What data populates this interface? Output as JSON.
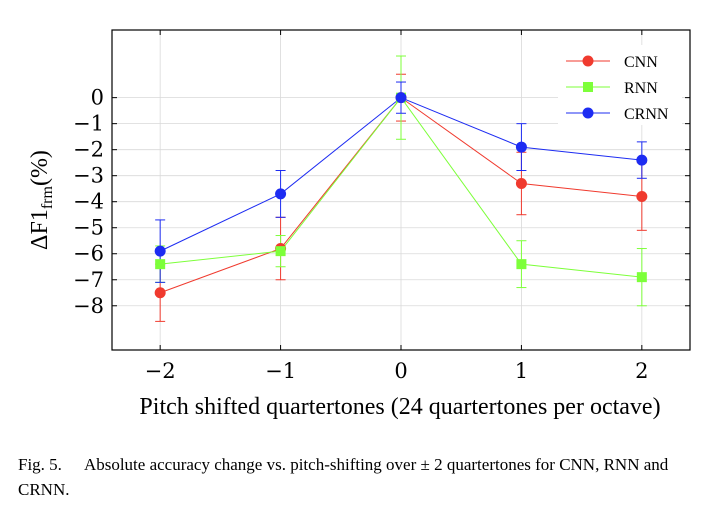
{
  "chart_data": {
    "type": "line",
    "x": [
      -2,
      -1,
      0,
      1,
      2
    ],
    "x_tick_labels": [
      "−2",
      "−1",
      "0",
      "1",
      "2"
    ],
    "xlim": [
      -2.4,
      2.4
    ],
    "ylim": [
      -9.7,
      2.6
    ],
    "y_ticks": [
      0,
      -1,
      -2,
      -3,
      -4,
      -5,
      -6,
      -7,
      -8
    ],
    "y_tick_labels": [
      "0",
      "−1",
      "−2",
      "−3",
      "−4",
      "−5",
      "−6",
      "−7",
      "−8"
    ],
    "xlabel": "Pitch shifted quartertones (24 quartertones per octave)",
    "ylabel_main": "ΔF1",
    "ylabel_sub": "frm",
    "ylabel_suffix": "(%)",
    "grid": true,
    "legend_position": "top-right",
    "series": [
      {
        "name": "CNN",
        "color": "#f03a2e",
        "marker": "circle",
        "values": [
          -7.5,
          -5.8,
          0.0,
          -3.3,
          -3.8
        ],
        "error": [
          1.1,
          1.2,
          0.9,
          1.2,
          1.3
        ]
      },
      {
        "name": "RNN",
        "color": "#7dff3a",
        "marker": "square",
        "values": [
          -6.4,
          -5.9,
          0.0,
          -6.4,
          -6.9
        ],
        "error": [
          0.7,
          0.6,
          1.6,
          0.9,
          1.1
        ]
      },
      {
        "name": "CRNN",
        "color": "#1d2cf2",
        "marker": "circle",
        "values": [
          -5.9,
          -3.7,
          0.0,
          -1.9,
          -2.4
        ],
        "error": [
          1.2,
          0.9,
          0.6,
          0.9,
          0.7
        ]
      }
    ]
  },
  "caption": {
    "label": "Fig. 5.",
    "text": "Absolute accuracy change vs. pitch-shifting over ± 2 quartertones for CNN, RNN and CRNN."
  }
}
